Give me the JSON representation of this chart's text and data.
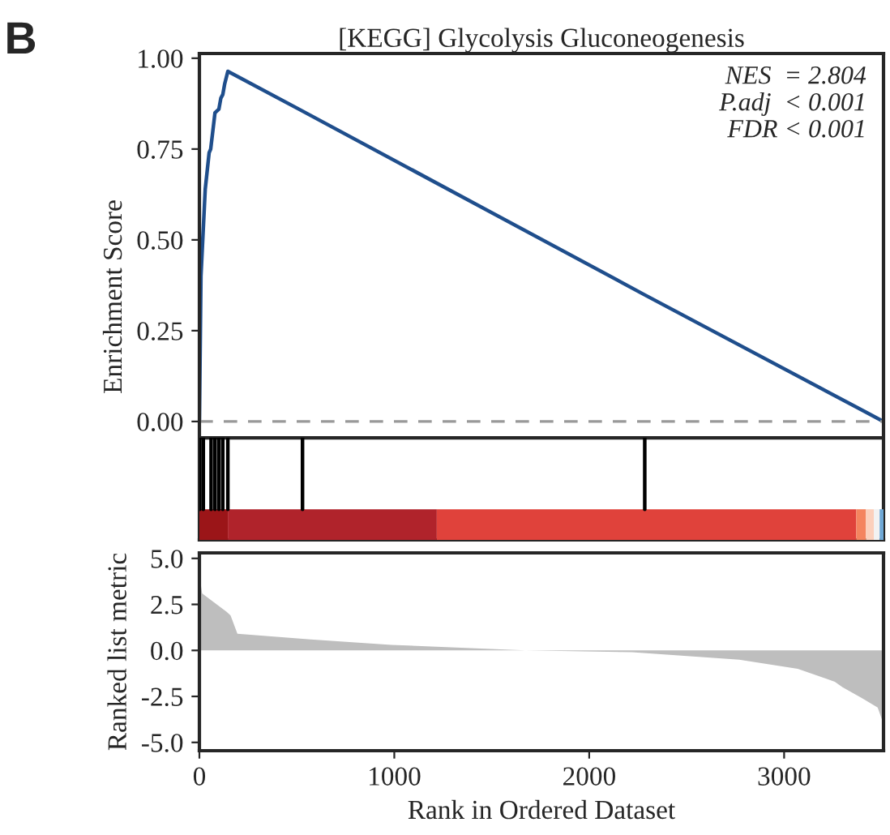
{
  "chart_data": [
    {
      "type": "line",
      "title": "[KEGG] Glycolysis Gluconeogenesis",
      "ylabel": "Enrichment Score",
      "annotations": [
        "B",
        "NES  = 2.804",
        "P.adj  < 0.001",
        "FDR < 0.001"
      ],
      "xlim": [
        0,
        3510
      ],
      "ylim": [
        -0.326,
        1.013
      ],
      "yticks": [
        {
          "value": 0,
          "label": "0.00"
        },
        {
          "value": 0.25,
          "label": "0.25"
        },
        {
          "value": 0.5,
          "label": "0.50"
        },
        {
          "value": 0.75,
          "label": "0.75"
        },
        {
          "value": 1,
          "label": "1.00"
        }
      ],
      "tick_labels": "y",
      "series": [
        {
          "color": "#1f4e8c",
          "x": [
            0,
            8,
            30,
            50,
            58,
            80,
            100,
            110,
            120,
            130,
            146,
            524,
            2280,
            3510
          ],
          "values": [
            0,
            0.4,
            0.64,
            0.74,
            0.75,
            0.85,
            0.86,
            0.89,
            0.9,
            0.93,
            0.964,
            0.856,
            0.35,
            0.0
          ]
        }
      ],
      "ref_lines": [
        {
          "axis": "y",
          "value": 0,
          "color": "#999999",
          "line_style": "dashed"
        },
        {
          "axis": "y",
          "value": -0.045,
          "color": "#262626"
        },
        {
          "axis": "x",
          "value": 2,
          "color": "#000000"
        },
        {
          "axis": "x",
          "value": 20,
          "color": "#000000"
        },
        {
          "axis": "x",
          "value": 60,
          "color": "#000000"
        },
        {
          "axis": "x",
          "value": 80,
          "color": "#000000"
        },
        {
          "axis": "x",
          "value": 100,
          "color": "#000000"
        },
        {
          "axis": "x",
          "value": 120,
          "color": "#000000"
        },
        {
          "axis": "x",
          "value": 146,
          "color": "#000000"
        },
        {
          "axis": "x",
          "value": 529,
          "color": "#000000"
        },
        {
          "axis": "x",
          "value": 2285,
          "color": "#000000"
        }
      ],
      "bands": [
        {
          "axis": "x",
          "from": 0,
          "to": 146,
          "color": "#9b1518"
        },
        {
          "axis": "x",
          "from": 146,
          "to": 1218,
          "color": "#b0232b"
        },
        {
          "axis": "x",
          "from": 1218,
          "to": 3370,
          "color": "#e0423b"
        },
        {
          "axis": "x",
          "from": 3370,
          "to": 3420,
          "color": "#f4845f"
        },
        {
          "axis": "x",
          "from": 3420,
          "to": 3460,
          "color": "#fbd0bc"
        },
        {
          "axis": "x",
          "from": 3460,
          "to": 3490,
          "color": "#f2f2f2"
        },
        {
          "axis": "x",
          "from": 3490,
          "to": 3510,
          "color": "#6fa8d6"
        }
      ]
    },
    {
      "type": "area",
      "xlabel": "Rank in Ordered Dataset",
      "ylabel": "Ranked list metric",
      "xlim": [
        0,
        3510
      ],
      "xticks": [
        0,
        1000,
        2000,
        3000
      ],
      "ylim": [
        -5.45,
        5.3
      ],
      "yticks": [
        {
          "value": -5,
          "label": "-5.0"
        },
        {
          "value": -2.5,
          "label": "-2.5"
        },
        {
          "value": 0,
          "label": "0.0"
        },
        {
          "value": 2.5,
          "label": "2.5"
        },
        {
          "value": 5,
          "label": "5.0"
        }
      ],
      "series": [
        {
          "color": "#bebebe",
          "x": [
            0,
            14,
            140,
            160,
            195,
            570,
            985,
            1672,
            2220,
            2770,
            3070,
            3260,
            3300,
            3400,
            3480,
            3510
          ],
          "values": [
            4.1,
            3.1,
            2.1,
            1.9,
            0.9,
            0.6,
            0.3,
            0,
            -0.1,
            -0.5,
            -1.0,
            -1.7,
            -2.0,
            -2.6,
            -3.1,
            -4.0
          ]
        }
      ]
    }
  ]
}
